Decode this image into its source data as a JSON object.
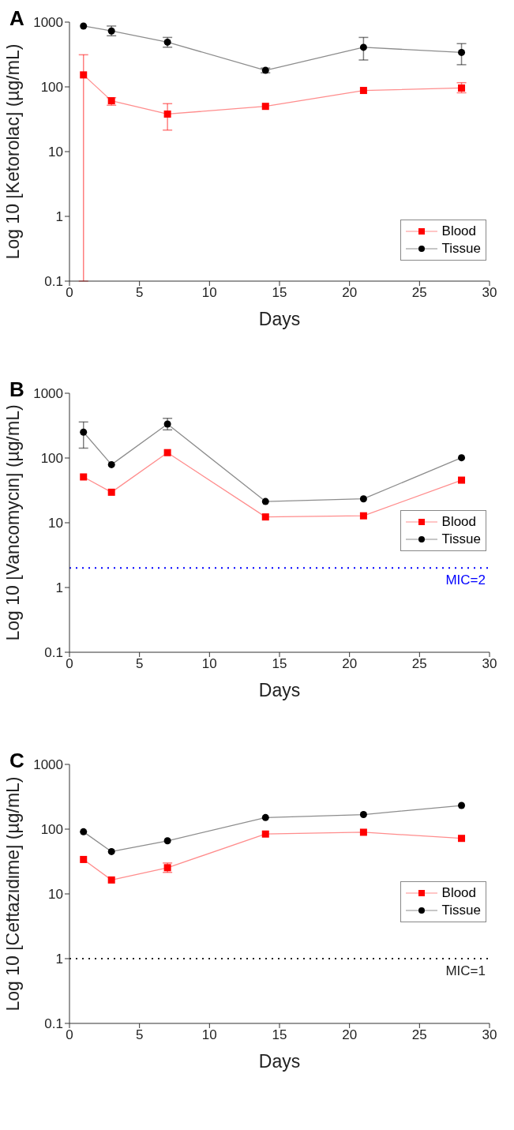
{
  "chart_data": [
    {
      "type": "line",
      "title": "A",
      "xlabel": "Days",
      "ylabel": "Log 10 [Ketorolac] (µg/mL)",
      "log": true,
      "xlim": [
        0,
        30
      ],
      "xticks": [
        0,
        5,
        10,
        15,
        20,
        25,
        30
      ],
      "ylim": [
        0.1,
        1000
      ],
      "yticks": [
        0.1,
        1,
        10,
        100,
        1000
      ],
      "legend": "bottom right",
      "x": [
        1,
        3,
        7,
        14,
        21,
        28
      ],
      "series": [
        {
          "name": "Blood",
          "color": "#ff0000",
          "marker": "square",
          "values": [
            153,
            61,
            38,
            50,
            88,
            96
          ],
          "errors": [
            [
              0.1,
              313
            ],
            [
              52,
              68
            ],
            [
              21.5,
              55
            ],
            null,
            null,
            [
              81,
              116
            ]
          ]
        },
        {
          "name": "Tissue",
          "color": "#000000",
          "marker": "circle",
          "values": [
            870,
            730,
            490,
            180,
            408,
            340
          ],
          "errors": [
            null,
            [
              615,
              870
            ],
            [
              410,
              580
            ],
            [
              165,
              195
            ],
            [
              260,
              580
            ],
            [
              220,
              465
            ]
          ]
        }
      ]
    },
    {
      "type": "line",
      "title": "B",
      "xlabel": "Days",
      "ylabel": "Log 10 [Vancomycin] (µg/mL)",
      "log": true,
      "xlim": [
        0,
        30
      ],
      "xticks": [
        0,
        5,
        10,
        15,
        20,
        25,
        30
      ],
      "ylim": [
        0.1,
        1000
      ],
      "yticks": [
        0.1,
        1,
        10,
        100,
        1000
      ],
      "legend": "right",
      "x": [
        1,
        3,
        7,
        14,
        21,
        28
      ],
      "series": [
        {
          "name": "Blood",
          "color": "#ff0000",
          "marker": "square",
          "values": [
            51,
            29.6,
            121,
            12.3,
            12.8,
            45.5
          ]
        },
        {
          "name": "Tissue",
          "color": "#000000",
          "marker": "circle",
          "values": [
            251,
            79,
            334,
            21.3,
            23.4,
            101
          ],
          "errors": [
            [
              142,
              360
            ],
            null,
            [
              272,
              410
            ],
            null,
            null,
            null
          ]
        }
      ],
      "ref_lines": [
        {
          "axis": "y",
          "value": 2,
          "label": "MIC=2",
          "color": "#0000ff",
          "line_style": "dotted"
        }
      ]
    },
    {
      "type": "line",
      "title": "C",
      "xlabel": "Days",
      "ylabel": "Log 10 [Ceftazidime] (µg/mL)",
      "log": true,
      "xlim": [
        0,
        30
      ],
      "xticks": [
        0,
        5,
        10,
        15,
        20,
        25,
        30
      ],
      "ylim": [
        0.1,
        1000
      ],
      "yticks": [
        0.1,
        1,
        10,
        100,
        1000
      ],
      "legend": "right",
      "x": [
        1,
        3,
        7,
        14,
        21,
        28
      ],
      "series": [
        {
          "name": "Blood",
          "color": "#ff0000",
          "marker": "square",
          "values": [
            34,
            16.4,
            25.4,
            84,
            89.5,
            72
          ],
          "errors": [
            null,
            null,
            [
              21.5,
              30
            ],
            null,
            null,
            null
          ]
        },
        {
          "name": "Tissue",
          "color": "#000000",
          "marker": "circle",
          "values": [
            91,
            45,
            66,
            151,
            168,
            232
          ]
        }
      ],
      "ref_lines": [
        {
          "axis": "y",
          "value": 1,
          "label": "MIC=1",
          "color": "#222222",
          "line_style": "dotted"
        }
      ]
    }
  ]
}
